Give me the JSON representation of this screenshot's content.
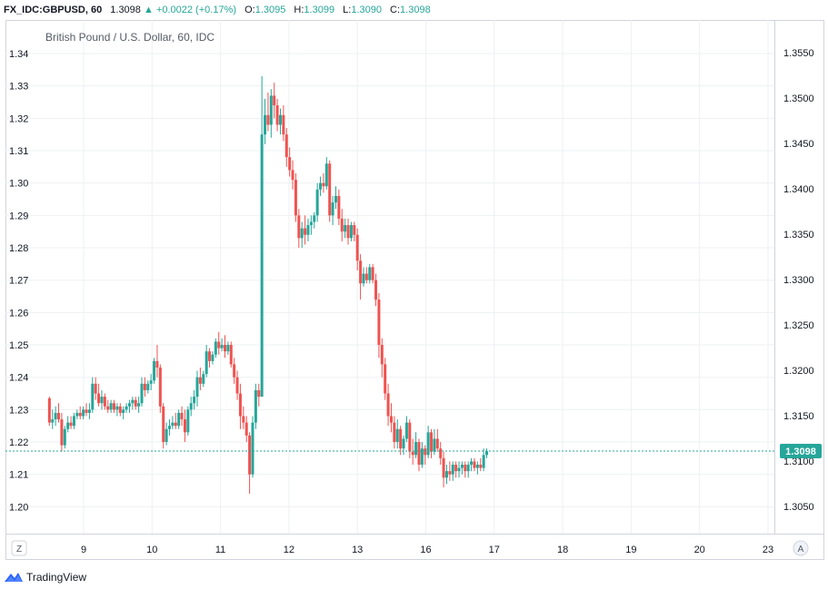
{
  "header": {
    "symbol": "FX_IDC:GBPUSD, 60",
    "last": "1.3098",
    "change": "+0.0022 (+0.17%)",
    "o_label": "O:",
    "o_value": "1.3095",
    "h_label": "H:",
    "h_value": "1.3099",
    "l_label": "L:",
    "l_value": "1.3090",
    "c_label": "C:",
    "c_value": "1.3098",
    "up_symbol": "▲"
  },
  "footer": {
    "brand": "TradingView"
  },
  "buttons": {
    "z": "Z",
    "a": "A"
  },
  "colors": {
    "up": "#26a69a",
    "down": "#ef5350",
    "last_line": "#26a69a",
    "grid": "#eef0f3",
    "text": "#131722"
  },
  "chart_data": {
    "type": "candlestick",
    "title": "British Pound / U.S. Dollar, 60, IDC",
    "x_tick_labels": [
      "9",
      "10",
      "11",
      "12",
      "13",
      "16",
      "17",
      "18",
      "19",
      "20",
      "23"
    ],
    "left_axis": {
      "min": 1.2,
      "max": 1.34,
      "ticks": [
        "1.20",
        "1.21",
        "1.22",
        "1.23",
        "1.24",
        "1.25",
        "1.26",
        "1.27",
        "1.28",
        "1.29",
        "1.30",
        "1.31",
        "1.32",
        "1.33",
        "1.34"
      ]
    },
    "right_axis": {
      "ticks": [
        "1.3050",
        "1.3100",
        "1.3150",
        "1.3200",
        "1.3250",
        "1.3300",
        "1.3350",
        "1.3400",
        "1.3450",
        "1.3500",
        "1.3550"
      ]
    },
    "last_price_label": "1.3098",
    "last_price_left_scale": 1.2172,
    "grid": true,
    "x_start": 8.5,
    "bar_step": 0.045,
    "candles": [
      [
        1.2335,
        1.234,
        1.225,
        1.226
      ],
      [
        1.226,
        1.23,
        1.224,
        1.227
      ],
      [
        1.227,
        1.231,
        1.225,
        1.229
      ],
      [
        1.229,
        1.232,
        1.226,
        1.227
      ],
      [
        1.227,
        1.229,
        1.217,
        1.219
      ],
      [
        1.219,
        1.225,
        1.218,
        1.224
      ],
      [
        1.224,
        1.228,
        1.223,
        1.226
      ],
      [
        1.226,
        1.228,
        1.224,
        1.225
      ],
      [
        1.225,
        1.229,
        1.224,
        1.228
      ],
      [
        1.228,
        1.23,
        1.227,
        1.229
      ],
      [
        1.229,
        1.231,
        1.227,
        1.228
      ],
      [
        1.228,
        1.231,
        1.227,
        1.23
      ],
      [
        1.23,
        1.232,
        1.228,
        1.229
      ],
      [
        1.229,
        1.232,
        1.227,
        1.23
      ],
      [
        1.23,
        1.24,
        1.229,
        1.238
      ],
      [
        1.238,
        1.24,
        1.233,
        1.235
      ],
      [
        1.235,
        1.238,
        1.231,
        1.232
      ],
      [
        1.232,
        1.236,
        1.23,
        1.234
      ],
      [
        1.234,
        1.235,
        1.23,
        1.231
      ],
      [
        1.231,
        1.233,
        1.229,
        1.23
      ],
      [
        1.23,
        1.233,
        1.229,
        1.232
      ],
      [
        1.232,
        1.233,
        1.229,
        1.23
      ],
      [
        1.23,
        1.232,
        1.228,
        1.231
      ],
      [
        1.231,
        1.232,
        1.228,
        1.229
      ],
      [
        1.229,
        1.231,
        1.227,
        1.23
      ],
      [
        1.23,
        1.232,
        1.229,
        1.231
      ],
      [
        1.231,
        1.233,
        1.229,
        1.232
      ],
      [
        1.232,
        1.234,
        1.23,
        1.233
      ],
      [
        1.233,
        1.234,
        1.23,
        1.231
      ],
      [
        1.231,
        1.234,
        1.229,
        1.232
      ],
      [
        1.232,
        1.24,
        1.231,
        1.238
      ],
      [
        1.238,
        1.24,
        1.234,
        1.236
      ],
      [
        1.236,
        1.239,
        1.235,
        1.238
      ],
      [
        1.238,
        1.241,
        1.236,
        1.239
      ],
      [
        1.239,
        1.246,
        1.238,
        1.245
      ],
      [
        1.245,
        1.25,
        1.24,
        1.243
      ],
      [
        1.243,
        1.244,
        1.229,
        1.231
      ],
      [
        1.231,
        1.232,
        1.218,
        1.22
      ],
      [
        1.22,
        1.226,
        1.219,
        1.224
      ],
      [
        1.224,
        1.227,
        1.222,
        1.225
      ],
      [
        1.225,
        1.228,
        1.224,
        1.226
      ],
      [
        1.226,
        1.229,
        1.224,
        1.225
      ],
      [
        1.225,
        1.23,
        1.224,
        1.229
      ],
      [
        1.229,
        1.231,
        1.225,
        1.227
      ],
      [
        1.227,
        1.23,
        1.22,
        1.223
      ],
      [
        1.223,
        1.231,
        1.222,
        1.23
      ],
      [
        1.23,
        1.234,
        1.228,
        1.232
      ],
      [
        1.232,
        1.236,
        1.23,
        1.234
      ],
      [
        1.234,
        1.242,
        1.231,
        1.24
      ],
      [
        1.24,
        1.243,
        1.236,
        1.238
      ],
      [
        1.238,
        1.242,
        1.237,
        1.241
      ],
      [
        1.241,
        1.25,
        1.24,
        1.248
      ],
      [
        1.248,
        1.249,
        1.243,
        1.245
      ],
      [
        1.245,
        1.248,
        1.244,
        1.247
      ],
      [
        1.247,
        1.252,
        1.246,
        1.251
      ],
      [
        1.251,
        1.254,
        1.247,
        1.249
      ],
      [
        1.249,
        1.252,
        1.248,
        1.25
      ],
      [
        1.25,
        1.253,
        1.246,
        1.248
      ],
      [
        1.248,
        1.251,
        1.247,
        1.25
      ],
      [
        1.25,
        1.251,
        1.243,
        1.244
      ],
      [
        1.244,
        1.246,
        1.238,
        1.24
      ],
      [
        1.24,
        1.242,
        1.233,
        1.235
      ],
      [
        1.235,
        1.238,
        1.224,
        1.228
      ],
      [
        1.228,
        1.231,
        1.224,
        1.226
      ],
      [
        1.226,
        1.228,
        1.22,
        1.222
      ],
      [
        1.222,
        1.223,
        1.204,
        1.21
      ],
      [
        1.21,
        1.228,
        1.209,
        1.226
      ],
      [
        1.226,
        1.238,
        1.224,
        1.236
      ],
      [
        1.236,
        1.238,
        1.231,
        1.234
      ],
      [
        1.234,
        1.333,
        1.234,
        1.315
      ],
      [
        1.315,
        1.326,
        1.312,
        1.321
      ],
      [
        1.321,
        1.328,
        1.316,
        1.318
      ],
      [
        1.318,
        1.329,
        1.314,
        1.327
      ],
      [
        1.327,
        1.331,
        1.32,
        1.324
      ],
      [
        1.324,
        1.326,
        1.316,
        1.318
      ],
      [
        1.318,
        1.323,
        1.315,
        1.321
      ],
      [
        1.321,
        1.324,
        1.313,
        1.315
      ],
      [
        1.315,
        1.317,
        1.305,
        1.308
      ],
      [
        1.308,
        1.311,
        1.302,
        1.304
      ],
      [
        1.304,
        1.307,
        1.298,
        1.301
      ],
      [
        1.301,
        1.303,
        1.288,
        1.29
      ],
      [
        1.29,
        1.292,
        1.28,
        1.283
      ],
      [
        1.283,
        1.288,
        1.28,
        1.286
      ],
      [
        1.286,
        1.29,
        1.281,
        1.284
      ],
      [
        1.284,
        1.289,
        1.282,
        1.287
      ],
      [
        1.287,
        1.29,
        1.284,
        1.288
      ],
      [
        1.288,
        1.291,
        1.286,
        1.29
      ],
      [
        1.29,
        1.3,
        1.288,
        1.298
      ],
      [
        1.298,
        1.302,
        1.296,
        1.3
      ],
      [
        1.3,
        1.303,
        1.297,
        1.299
      ],
      [
        1.299,
        1.308,
        1.298,
        1.306
      ],
      [
        1.306,
        1.307,
        1.288,
        1.29
      ],
      [
        1.29,
        1.296,
        1.287,
        1.294
      ],
      [
        1.294,
        1.299,
        1.292,
        1.296
      ],
      [
        1.296,
        1.298,
        1.287,
        1.289
      ],
      [
        1.289,
        1.292,
        1.282,
        1.285
      ],
      [
        1.285,
        1.289,
        1.283,
        1.287
      ],
      [
        1.287,
        1.289,
        1.281,
        1.283
      ],
      [
        1.283,
        1.288,
        1.282,
        1.287
      ],
      [
        1.287,
        1.288,
        1.282,
        1.284
      ],
      [
        1.284,
        1.286,
        1.273,
        1.276
      ],
      [
        1.276,
        1.278,
        1.264,
        1.269
      ],
      [
        1.269,
        1.274,
        1.268,
        1.272
      ],
      [
        1.272,
        1.274,
        1.269,
        1.27
      ],
      [
        1.27,
        1.275,
        1.269,
        1.274
      ],
      [
        1.274,
        1.275,
        1.269,
        1.27
      ],
      [
        1.27,
        1.272,
        1.262,
        1.264
      ],
      [
        1.264,
        1.266,
        1.246,
        1.25
      ],
      [
        1.25,
        1.252,
        1.24,
        1.244
      ],
      [
        1.244,
        1.246,
        1.233,
        1.235
      ],
      [
        1.235,
        1.238,
        1.225,
        1.228
      ],
      [
        1.228,
        1.232,
        1.223,
        1.226
      ],
      [
        1.226,
        1.228,
        1.218,
        1.22
      ],
      [
        1.22,
        1.227,
        1.218,
        1.224
      ],
      [
        1.224,
        1.225,
        1.216,
        1.218
      ],
      [
        1.218,
        1.222,
        1.216,
        1.221
      ],
      [
        1.221,
        1.228,
        1.22,
        1.226
      ],
      [
        1.226,
        1.227,
        1.215,
        1.217
      ],
      [
        1.217,
        1.221,
        1.213,
        1.216
      ],
      [
        1.216,
        1.223,
        1.215,
        1.22
      ],
      [
        1.22,
        1.221,
        1.211,
        1.213
      ],
      [
        1.213,
        1.22,
        1.212,
        1.218
      ],
      [
        1.218,
        1.219,
        1.213,
        1.216
      ],
      [
        1.216,
        1.225,
        1.215,
        1.223
      ],
      [
        1.223,
        1.224,
        1.215,
        1.217
      ],
      [
        1.217,
        1.224,
        1.216,
        1.221
      ],
      [
        1.221,
        1.224,
        1.217,
        1.218
      ],
      [
        1.218,
        1.22,
        1.213,
        1.215
      ],
      [
        1.215,
        1.217,
        1.206,
        1.209
      ],
      [
        1.209,
        1.213,
        1.207,
        1.211
      ],
      [
        1.211,
        1.214,
        1.208,
        1.21
      ],
      [
        1.21,
        1.214,
        1.208,
        1.213
      ],
      [
        1.213,
        1.214,
        1.209,
        1.211
      ],
      [
        1.211,
        1.214,
        1.209,
        1.212
      ],
      [
        1.212,
        1.214,
        1.21,
        1.213
      ],
      [
        1.213,
        1.214,
        1.209,
        1.211
      ],
      [
        1.211,
        1.214,
        1.209,
        1.213
      ],
      [
        1.213,
        1.215,
        1.211,
        1.214
      ],
      [
        1.214,
        1.215,
        1.211,
        1.212
      ],
      [
        1.212,
        1.214,
        1.21,
        1.213
      ],
      [
        1.213,
        1.215,
        1.211,
        1.212
      ],
      [
        1.212,
        1.218,
        1.211,
        1.216
      ],
      [
        1.216,
        1.218,
        1.215,
        1.2172
      ]
    ]
  }
}
